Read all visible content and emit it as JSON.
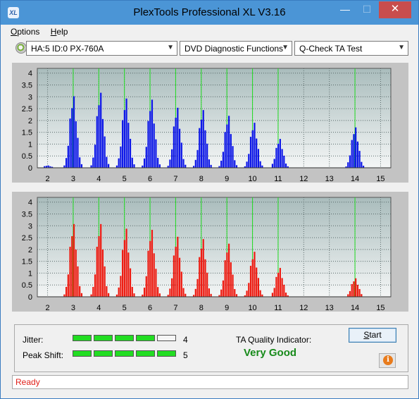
{
  "window": {
    "title": "PlexTools Professional XL V3.16",
    "icon_text": "XL",
    "min_glyph": "—",
    "max_glyph": "☐",
    "close_glyph": "✕"
  },
  "menu": [
    {
      "label": "Options",
      "accel": "O",
      "rest": "ptions"
    },
    {
      "label": "Help",
      "accel": "H",
      "rest": "elp"
    }
  ],
  "toolbar": {
    "drive": "HA:5 ID:0  PX-760A",
    "function": "DVD Diagnostic Functions",
    "test": "Q-Check TA Test"
  },
  "chart_data": [
    {
      "type": "bar",
      "name": "TA test - lands (top)",
      "color": "#0c16e8",
      "ylim": [
        0,
        4.2
      ],
      "y_ticks": [
        "4",
        "3.5",
        "3",
        "2.5",
        "2",
        "1.5",
        "1",
        "0.5",
        "0"
      ],
      "x_ticks": [
        "2",
        "3",
        "4",
        "5",
        "6",
        "7",
        "8",
        "9",
        "10",
        "11",
        "12",
        "13",
        "14",
        "15"
      ],
      "xlim": [
        1.6,
        15.4
      ],
      "green_markers": [
        3,
        4,
        5,
        6,
        7,
        8,
        9,
        10,
        11,
        14
      ],
      "peaks": [
        {
          "center": 2.0,
          "height": 0.1
        },
        {
          "center": 3.0,
          "height": 3.1
        },
        {
          "center": 4.05,
          "height": 3.25
        },
        {
          "center": 5.05,
          "height": 3.0
        },
        {
          "center": 6.05,
          "height": 2.95
        },
        {
          "center": 7.05,
          "height": 2.6
        },
        {
          "center": 8.05,
          "height": 2.5
        },
        {
          "center": 9.05,
          "height": 2.25
        },
        {
          "center": 10.05,
          "height": 1.95
        },
        {
          "center": 11.05,
          "height": 1.25
        },
        {
          "center": 14.0,
          "height": 1.75
        }
      ]
    },
    {
      "type": "bar",
      "name": "TA test - pits (bottom)",
      "color": "#ee1a10",
      "ylim": [
        0,
        4.2
      ],
      "y_ticks": [
        "4",
        "3.5",
        "3",
        "2.5",
        "2",
        "1.5",
        "1",
        "0.5",
        "0"
      ],
      "x_ticks": [
        "2",
        "3",
        "4",
        "5",
        "6",
        "7",
        "8",
        "9",
        "10",
        "11",
        "12",
        "13",
        "14",
        "15"
      ],
      "xlim": [
        1.6,
        15.4
      ],
      "green_markers": [
        3,
        4,
        5,
        6,
        7,
        8,
        9,
        10,
        11,
        14
      ],
      "peaks": [
        {
          "center": 3.0,
          "height": 3.15
        },
        {
          "center": 4.05,
          "height": 3.15
        },
        {
          "center": 5.05,
          "height": 2.95
        },
        {
          "center": 6.05,
          "height": 2.9
        },
        {
          "center": 7.05,
          "height": 2.6
        },
        {
          "center": 8.05,
          "height": 2.5
        },
        {
          "center": 9.05,
          "height": 2.3
        },
        {
          "center": 10.05,
          "height": 1.95
        },
        {
          "center": 11.05,
          "height": 1.25
        },
        {
          "center": 14.0,
          "height": 0.8
        }
      ]
    }
  ],
  "metrics": {
    "jitter": {
      "label": "Jitter:",
      "value": "4",
      "level": 4,
      "max": 5
    },
    "peak_shift": {
      "label": "Peak Shift:",
      "value": "5",
      "level": 5,
      "max": 5
    }
  },
  "ta_quality": {
    "label": "TA Quality Indicator:",
    "value": "Very Good"
  },
  "buttons": {
    "start": "Start",
    "start_accel": "S",
    "start_rest": "tart",
    "info": "i"
  },
  "status": {
    "text": "Ready"
  }
}
